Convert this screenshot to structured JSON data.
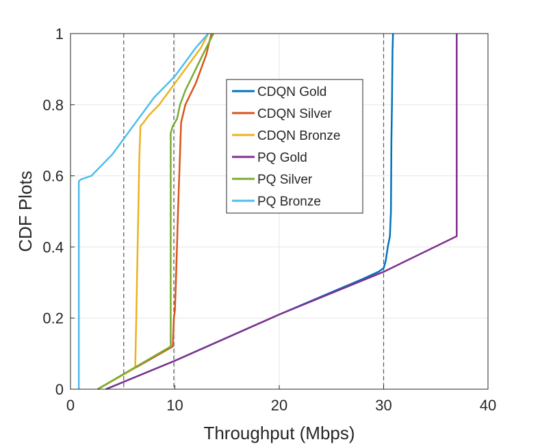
{
  "chart_data": {
    "type": "line",
    "title": "",
    "xlabel": "Throughput (Mbps)",
    "ylabel": "CDF Plots",
    "xlim": [
      0,
      40
    ],
    "ylim": [
      0,
      1
    ],
    "xticks": [
      "0",
      "10",
      "20",
      "30",
      "40"
    ],
    "yticks": [
      "0",
      "0.2",
      "0.4",
      "0.6",
      "0.8",
      "1"
    ],
    "grid": true,
    "legend_position": "center-right",
    "reference_lines": [
      5.1,
      9.9,
      30
    ],
    "series": [
      {
        "name": "CDQN Gold",
        "color": "#0072BD",
        "x": [
          3.4,
          10,
          20,
          28,
          29.5,
          30,
          30.2,
          30.4,
          30.6,
          30.7,
          30.75,
          30.8,
          30.85,
          30.9
        ],
        "y": [
          0,
          0.08,
          0.21,
          0.31,
          0.33,
          0.34,
          0.36,
          0.4,
          0.43,
          0.5,
          0.7,
          0.8,
          0.95,
          1.0
        ]
      },
      {
        "name": "CDQN Silver",
        "color": "#D95319",
        "x": [
          2.6,
          9.8,
          9.9,
          10.0,
          10.1,
          10.2,
          10.3,
          10.6,
          11.0,
          11.5,
          12.0,
          12.5,
          13.0,
          13.5
        ],
        "y": [
          0,
          0.12,
          0.2,
          0.22,
          0.3,
          0.4,
          0.5,
          0.75,
          0.8,
          0.83,
          0.86,
          0.9,
          0.94,
          1.0
        ]
      },
      {
        "name": "CDQN Bronze",
        "color": "#EDB120",
        "x": [
          2.6,
          6.2,
          6.3,
          6.4,
          6.5,
          6.6,
          6.7,
          7.0,
          7.5,
          8.5,
          9.5,
          10.5,
          11.5,
          12.5,
          13.2
        ],
        "y": [
          0,
          0.06,
          0.2,
          0.35,
          0.5,
          0.65,
          0.74,
          0.75,
          0.77,
          0.8,
          0.84,
          0.88,
          0.92,
          0.96,
          1.0
        ]
      },
      {
        "name": "PQ Gold",
        "color": "#7E2F8E",
        "x": [
          3.4,
          10,
          20,
          30,
          37,
          37,
          37
        ],
        "y": [
          0,
          0.08,
          0.21,
          0.33,
          0.43,
          0.7,
          1.0
        ]
      },
      {
        "name": "PQ Silver",
        "color": "#77AC30",
        "x": [
          2.6,
          9.6,
          9.6,
          9.8,
          10.2,
          10.5,
          11.0,
          11.5,
          12.0,
          12.5,
          13.0,
          13.7
        ],
        "y": [
          0,
          0.12,
          0.72,
          0.74,
          0.76,
          0.8,
          0.84,
          0.87,
          0.9,
          0.93,
          0.96,
          1.0
        ]
      },
      {
        "name": "PQ Bronze",
        "color": "#4DBEEE",
        "x": [
          0.8,
          0.8,
          1.0,
          2.0,
          3.0,
          4.0,
          5.0,
          6.0,
          7.0,
          8.0,
          9.0,
          10.0,
          11.0,
          12.0,
          13.2
        ],
        "y": [
          0,
          0.585,
          0.59,
          0.6,
          0.63,
          0.66,
          0.7,
          0.74,
          0.78,
          0.82,
          0.85,
          0.88,
          0.92,
          0.96,
          1.0
        ]
      }
    ]
  }
}
